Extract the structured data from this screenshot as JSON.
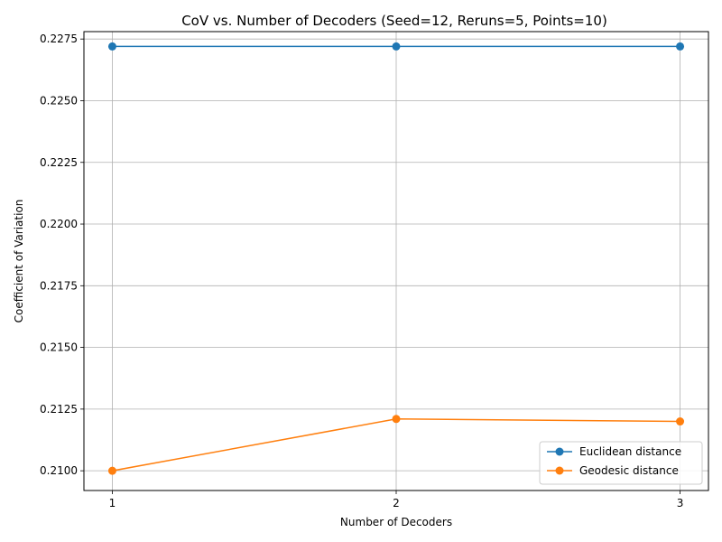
{
  "chart_data": {
    "type": "line",
    "title": "CoV vs. Number of Decoders (Seed=12, Reruns=5, Points=10)",
    "xlabel": "Number of Decoders",
    "ylabel": "Coefficient of Variation",
    "x": [
      1,
      2,
      3
    ],
    "x_ticks": [
      "1",
      "2",
      "3"
    ],
    "ylim": [
      0.2092,
      0.2278
    ],
    "y_ticks": [
      "0.2100",
      "0.2125",
      "0.2150",
      "0.2175",
      "0.2200",
      "0.2225",
      "0.2250",
      "0.2275"
    ],
    "y_tick_values": [
      0.21,
      0.2125,
      0.215,
      0.2175,
      0.22,
      0.2225,
      0.225,
      0.2275
    ],
    "grid": true,
    "legend_position": "bottom-right",
    "series": [
      {
        "name": "Euclidean distance",
        "color": "#1f77b4",
        "values": [
          0.2272,
          0.2272,
          0.2272
        ],
        "marker": "circle"
      },
      {
        "name": "Geodesic distance",
        "color": "#ff7f0e",
        "values": [
          0.21,
          0.2121,
          0.212
        ],
        "marker": "circle"
      }
    ]
  }
}
